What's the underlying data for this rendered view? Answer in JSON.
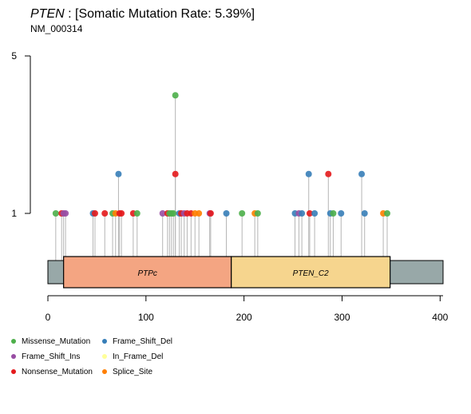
{
  "title": {
    "gene": "PTEN",
    "rest": " : [Somatic Mutation Rate: 5.39%]"
  },
  "subtitle": "NM_000314",
  "chart_data": {
    "type": "lollipop",
    "xlim": [
      0,
      403
    ],
    "x_ticks": [
      0,
      100,
      200,
      300,
      400
    ],
    "y_ticks": [
      1,
      5
    ],
    "ylim": [
      1,
      5
    ],
    "protein_length": 403,
    "domains": [
      {
        "name": "PTPc",
        "start": 16,
        "end": 187,
        "color": "#f4a582"
      },
      {
        "name": "PTEN_C2",
        "start": 187,
        "end": 349,
        "color": "#f6d58e"
      }
    ],
    "backbone_color": "#98a8a8",
    "categories": [
      {
        "name": "Missense_Mutation",
        "color": "#4daf4a"
      },
      {
        "name": "Frame_Shift_Del",
        "color": "#377eb8"
      },
      {
        "name": "Frame_Shift_Ins",
        "color": "#984ea3"
      },
      {
        "name": "In_Frame_Del",
        "color": "#ffff99"
      },
      {
        "name": "Nonsense_Mutation",
        "color": "#e41a1c"
      },
      {
        "name": "Splice_Site",
        "color": "#ff7f00"
      }
    ],
    "mutations": [
      {
        "pos": 8,
        "count": 1,
        "type": "Missense_Mutation"
      },
      {
        "pos": 14,
        "count": 1,
        "type": "Nonsense_Mutation"
      },
      {
        "pos": 16,
        "count": 1,
        "type": "Frame_Shift_Ins"
      },
      {
        "pos": 18,
        "count": 1,
        "type": "Frame_Shift_Ins"
      },
      {
        "pos": 46,
        "count": 1,
        "type": "Frame_Shift_Del"
      },
      {
        "pos": 48,
        "count": 1,
        "type": "Nonsense_Mutation"
      },
      {
        "pos": 58,
        "count": 1,
        "type": "Nonsense_Mutation"
      },
      {
        "pos": 66,
        "count": 1,
        "type": "Missense_Mutation"
      },
      {
        "pos": 69,
        "count": 1,
        "type": "Splice_Site"
      },
      {
        "pos": 72,
        "count": 2,
        "type": "Frame_Shift_Del"
      },
      {
        "pos": 73,
        "count": 1,
        "type": "Nonsense_Mutation"
      },
      {
        "pos": 75,
        "count": 1,
        "type": "Nonsense_Mutation"
      },
      {
        "pos": 87,
        "count": 1,
        "type": "Nonsense_Mutation"
      },
      {
        "pos": 91,
        "count": 1,
        "type": "Missense_Mutation"
      },
      {
        "pos": 117,
        "count": 1,
        "type": "Frame_Shift_Ins"
      },
      {
        "pos": 122,
        "count": 1,
        "type": "Nonsense_Mutation"
      },
      {
        "pos": 124,
        "count": 1,
        "type": "Missense_Mutation"
      },
      {
        "pos": 126,
        "count": 1,
        "type": "Missense_Mutation"
      },
      {
        "pos": 128,
        "count": 1,
        "type": "Missense_Mutation"
      },
      {
        "pos": 130,
        "count": 4,
        "type": "Missense_Mutation"
      },
      {
        "pos": 130,
        "count": 2,
        "type": "Nonsense_Mutation"
      },
      {
        "pos": 134,
        "count": 1,
        "type": "Frame_Shift_Del"
      },
      {
        "pos": 136,
        "count": 1,
        "type": "Nonsense_Mutation"
      },
      {
        "pos": 139,
        "count": 1,
        "type": "Frame_Shift_Ins"
      },
      {
        "pos": 142,
        "count": 1,
        "type": "Nonsense_Mutation"
      },
      {
        "pos": 146,
        "count": 1,
        "type": "Nonsense_Mutation"
      },
      {
        "pos": 150,
        "count": 1,
        "type": "Splice_Site"
      },
      {
        "pos": 154,
        "count": 1,
        "type": "Splice_Site"
      },
      {
        "pos": 165,
        "count": 1,
        "type": "Frame_Shift_Ins"
      },
      {
        "pos": 166,
        "count": 1,
        "type": "Nonsense_Mutation"
      },
      {
        "pos": 182,
        "count": 1,
        "type": "Frame_Shift_Del"
      },
      {
        "pos": 198,
        "count": 1,
        "type": "Missense_Mutation"
      },
      {
        "pos": 211,
        "count": 1,
        "type": "Splice_Site"
      },
      {
        "pos": 214,
        "count": 1,
        "type": "Missense_Mutation"
      },
      {
        "pos": 252,
        "count": 1,
        "type": "Frame_Shift_Del"
      },
      {
        "pos": 256,
        "count": 1,
        "type": "Frame_Shift_Ins"
      },
      {
        "pos": 259,
        "count": 1,
        "type": "Frame_Shift_Del"
      },
      {
        "pos": 266,
        "count": 2,
        "type": "Frame_Shift_Del"
      },
      {
        "pos": 267,
        "count": 1,
        "type": "Nonsense_Mutation"
      },
      {
        "pos": 272,
        "count": 1,
        "type": "Frame_Shift_Del"
      },
      {
        "pos": 286,
        "count": 2,
        "type": "Nonsense_Mutation"
      },
      {
        "pos": 288,
        "count": 1,
        "type": "Frame_Shift_Del"
      },
      {
        "pos": 291,
        "count": 1,
        "type": "Missense_Mutation"
      },
      {
        "pos": 299,
        "count": 1,
        "type": "Frame_Shift_Del"
      },
      {
        "pos": 320,
        "count": 2,
        "type": "Frame_Shift_Del"
      },
      {
        "pos": 323,
        "count": 1,
        "type": "Frame_Shift_Del"
      },
      {
        "pos": 342,
        "count": 1,
        "type": "Splice_Site"
      },
      {
        "pos": 346,
        "count": 1,
        "type": "Missense_Mutation"
      }
    ],
    "legend_placement": "bottom-left"
  }
}
